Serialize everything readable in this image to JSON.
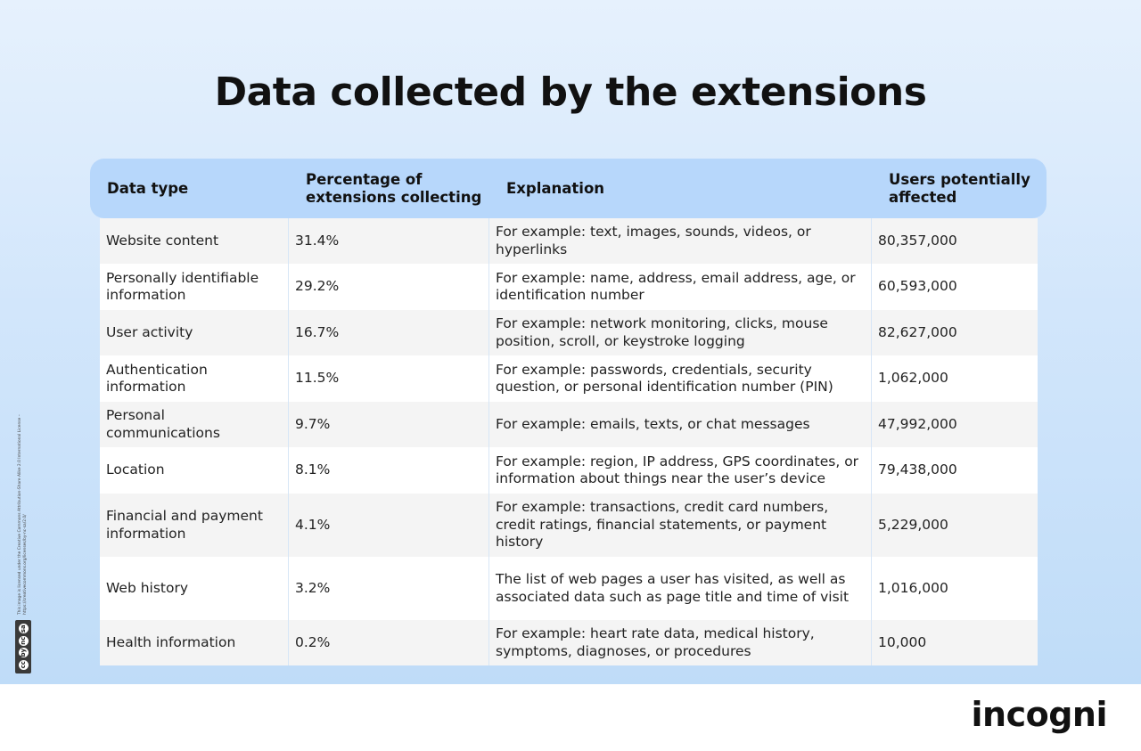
{
  "title": "Data collected by the extensions",
  "table": {
    "headers": {
      "data_type": "Data type",
      "percentage": "Percentage of extensions collecting",
      "explanation": "Explanation",
      "users": "Users potentially affected"
    },
    "rows": [
      {
        "data_type": "Website content",
        "percentage": "31.4%",
        "explanation": "For example: text, images, sounds, videos, or hyperlinks",
        "users": "80,357,000"
      },
      {
        "data_type": "Personally identifiable information",
        "percentage": "29.2%",
        "explanation": "For example: name, address, email address, age, or identification number",
        "users": "60,593,000"
      },
      {
        "data_type": "User activity",
        "percentage": "16.7%",
        "explanation": "For example: network monitoring, clicks, mouse position, scroll, or keystroke logging",
        "users": "82,627,000"
      },
      {
        "data_type": "Authentication information",
        "percentage": "11.5%",
        "explanation": "For example: passwords, credentials, security question, or personal identification number (PIN)",
        "users": "1,062,000"
      },
      {
        "data_type": "Personal communications",
        "percentage": "9.7%",
        "explanation": "For example: emails, texts, or chat messages",
        "users": "47,992,000"
      },
      {
        "data_type": "Location",
        "percentage": "8.1%",
        "explanation": "For example: region, IP address, GPS coordinates, or information about things near the user’s device",
        "users": "79,438,000"
      },
      {
        "data_type": "Financial and payment information",
        "percentage": "4.1%",
        "explanation": "For example: transactions, credit card numbers, credit ratings, financial statements, or payment history",
        "users": "5,229,000"
      },
      {
        "data_type": "Web history",
        "percentage": "3.2%",
        "explanation": "The list of web pages a user has visited, as well as associated data such as page title and time of visit",
        "users": "1,016,000"
      },
      {
        "data_type": "Health information",
        "percentage": "0.2%",
        "explanation": "For example: heart rate data, medical history, symptoms, diagnoses, or procedures",
        "users": "10,000"
      }
    ]
  },
  "chart_data": {
    "type": "table",
    "title": "Data collected by the extensions",
    "columns": [
      "Data type",
      "Percentage of extensions collecting",
      "Explanation",
      "Users potentially affected"
    ],
    "rows": [
      [
        "Website content",
        "31.4%",
        "For example: text, images, sounds, videos, or hyperlinks",
        "80,357,000"
      ],
      [
        "Personally identifiable information",
        "29.2%",
        "For example: name, address, email address, age, or identification number",
        "60,593,000"
      ],
      [
        "User activity",
        "16.7%",
        "For example: network monitoring, clicks, mouse position, scroll, or keystroke logging",
        "82,627,000"
      ],
      [
        "Authentication information",
        "11.5%",
        "For example: passwords, credentials, security question, or personal identification number (PIN)",
        "1,062,000"
      ],
      [
        "Personal communications",
        "9.7%",
        "For example: emails, texts, or chat messages",
        "47,992,000"
      ],
      [
        "Location",
        "8.1%",
        "For example: region, IP address, GPS coordinates, or information about things near the user’s device",
        "79,438,000"
      ],
      [
        "Financial and payment information",
        "4.1%",
        "For example: transactions, credit card numbers, credit ratings, financial statements, or payment history",
        "5,229,000"
      ],
      [
        "Web history",
        "3.2%",
        "The list of web pages a user has visited, as well as associated data such as page title and time of visit",
        "1,016,000"
      ],
      [
        "Health information",
        "0.2%",
        "For example: heart rate data, medical history, symptoms, diagnoses, or procedures",
        "10,000"
      ]
    ]
  },
  "license": {
    "text": "This image is licensed under the Creative Commons Attribution-Share Alike 2.0 International License – https://creativecommons.org/licenses/by-nc-sa/2.0/",
    "badge_labels": [
      "cc",
      "by",
      "nc",
      "sa"
    ]
  },
  "brand": {
    "logo_text": "incogni"
  },
  "colors": {
    "header_row": "#b7d7fb",
    "row_odd": "#f4f4f4",
    "row_even": "#ffffff",
    "background_top": "#e6f1fd",
    "background_bottom": "#bfdcf8"
  }
}
